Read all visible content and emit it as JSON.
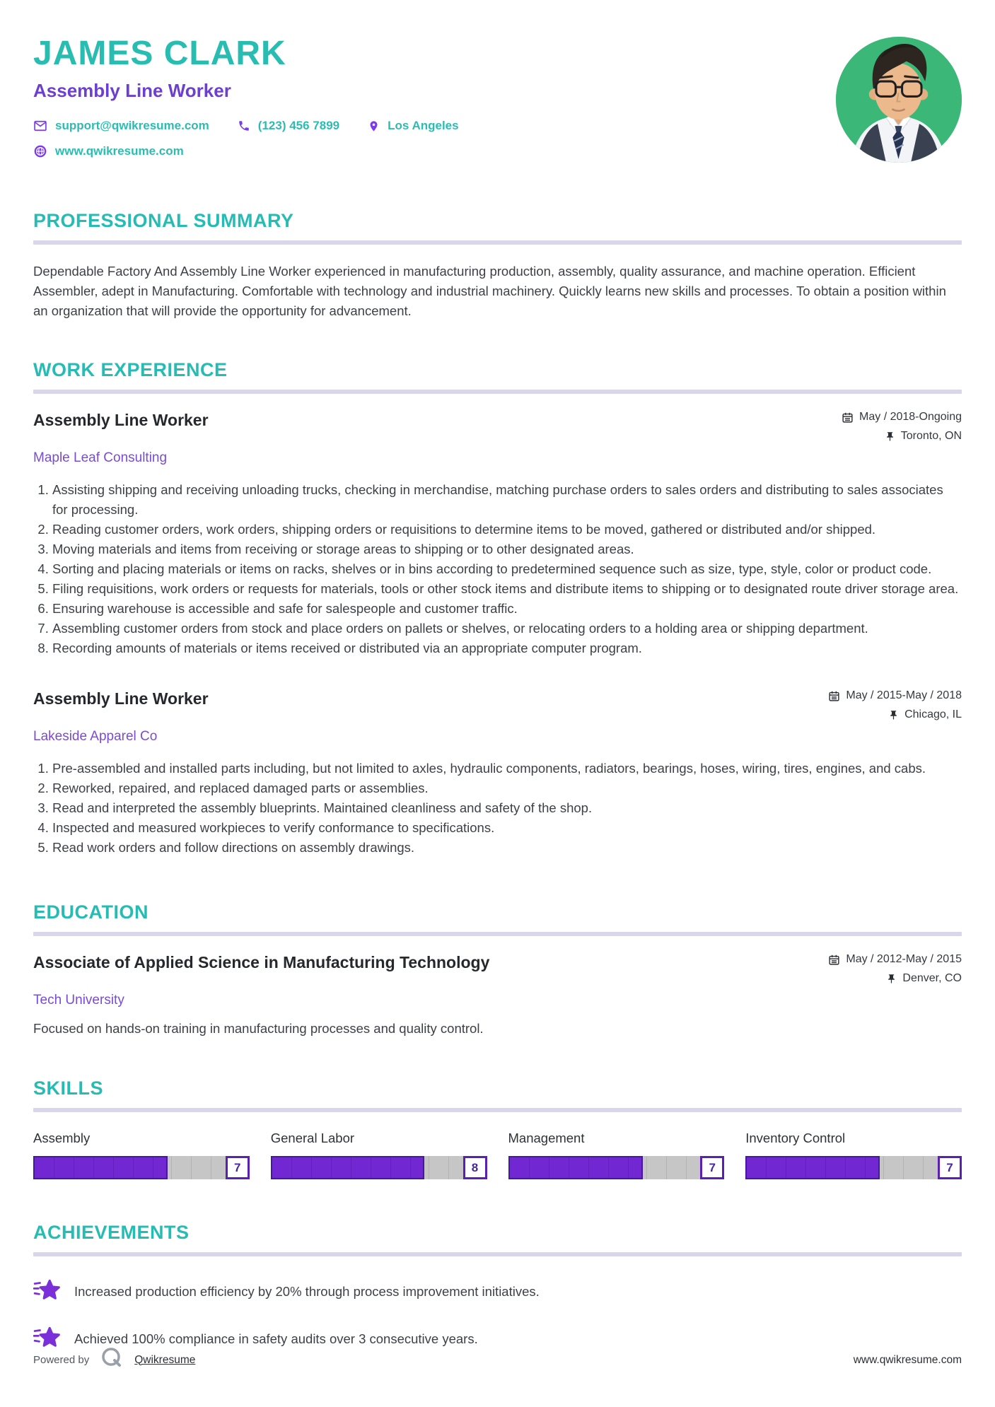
{
  "header": {
    "name": "JAMES CLARK",
    "title": "Assembly Line Worker",
    "contact": {
      "email": "support@qwikresume.com",
      "phone": "(123) 456 7899",
      "location": "Los Angeles",
      "website": "www.qwikresume.com"
    }
  },
  "sections": {
    "summary": {
      "heading": "PROFESSIONAL SUMMARY",
      "text": "Dependable Factory And Assembly Line Worker experienced in manufacturing production, assembly, quality assurance, and machine operation. Efficient Assembler, adept in Manufacturing. Comfortable with technology and industrial machinery. Quickly learns new skills and processes. To obtain a position within an organization that will provide the opportunity for advancement."
    },
    "experience": {
      "heading": "WORK EXPERIENCE",
      "jobs": [
        {
          "title": "Assembly Line Worker",
          "company": "Maple Leaf Consulting",
          "dates": "May / 2018-Ongoing",
          "location": "Toronto, ON",
          "bullets": [
            "Assisting shipping and receiving unloading trucks, checking in merchandise, matching purchase orders to sales orders and distributing to sales associates for processing.",
            "Reading customer orders, work orders, shipping orders or requisitions to determine items to be moved, gathered or distributed and/or shipped.",
            "Moving materials and items from receiving or storage areas to shipping or to other designated areas.",
            "Sorting and placing materials or items on racks, shelves or in bins according to predetermined sequence such as size, type, style, color or product code.",
            "Filing requisitions, work orders or requests for materials, tools or other stock items and distribute items to shipping or to designated route driver storage area.",
            "Ensuring warehouse is accessible and safe for salespeople and customer traffic.",
            "Assembling customer orders from stock and place orders on pallets or shelves, or relocating orders to a holding area or shipping department.",
            "Recording amounts of materials or items received or distributed via an appropriate computer program."
          ]
        },
        {
          "title": "Assembly Line Worker",
          "company": "Lakeside Apparel Co",
          "dates": "May / 2015-May / 2018",
          "location": "Chicago, IL",
          "bullets": [
            "Pre-assembled and installed parts including, but not limited to axles, hydraulic components, radiators, bearings, hoses, wiring, tires, engines, and cabs.",
            "Reworked, repaired, and replaced damaged parts or assemblies.",
            "Read and interpreted the assembly blueprints. Maintained cleanliness and safety of the shop.",
            "Inspected and measured workpieces to verify conformance to specifications.",
            "Read work orders and follow directions on assembly drawings."
          ]
        }
      ]
    },
    "education": {
      "heading": "EDUCATION",
      "degree": "Associate of Applied Science in Manufacturing Technology",
      "school": "Tech University",
      "dates": "May / 2012-May / 2015",
      "location": "Denver, CO",
      "description": "Focused on hands-on training in manufacturing processes and quality control."
    },
    "skills": {
      "heading": "SKILLS",
      "max_level": 10,
      "items": [
        {
          "name": "Assembly",
          "level": 7
        },
        {
          "name": "General Labor",
          "level": 8
        },
        {
          "name": "Management",
          "level": 7
        },
        {
          "name": "Inventory Control",
          "level": 7
        }
      ]
    },
    "achievements": {
      "heading": "ACHIEVEMENTS",
      "items": [
        "Increased production efficiency by 20% through process improvement initiatives.",
        "Achieved 100% compliance in safety audits over 3 consecutive years."
      ]
    }
  },
  "footer": {
    "powered_by": "Powered by",
    "brand": "Qwikresume",
    "website": "www.qwikresume.com"
  },
  "colors": {
    "accent_teal": "#29bdb2",
    "accent_purple": "#7c3aed",
    "bar_fill": "#7127d2",
    "bar_track": "#c6c6c6",
    "rule_lavender": "#d9d5ea",
    "avatar_bg": "#3bb877"
  },
  "icons": {
    "email": "envelope-icon",
    "phone": "phone-icon",
    "location": "map-pin-icon",
    "website": "globe-icon",
    "dates": "calendar-icon",
    "place": "pushpin-icon",
    "achievement": "shooting-star-icon",
    "brand": "qwikresume-q-logo"
  }
}
